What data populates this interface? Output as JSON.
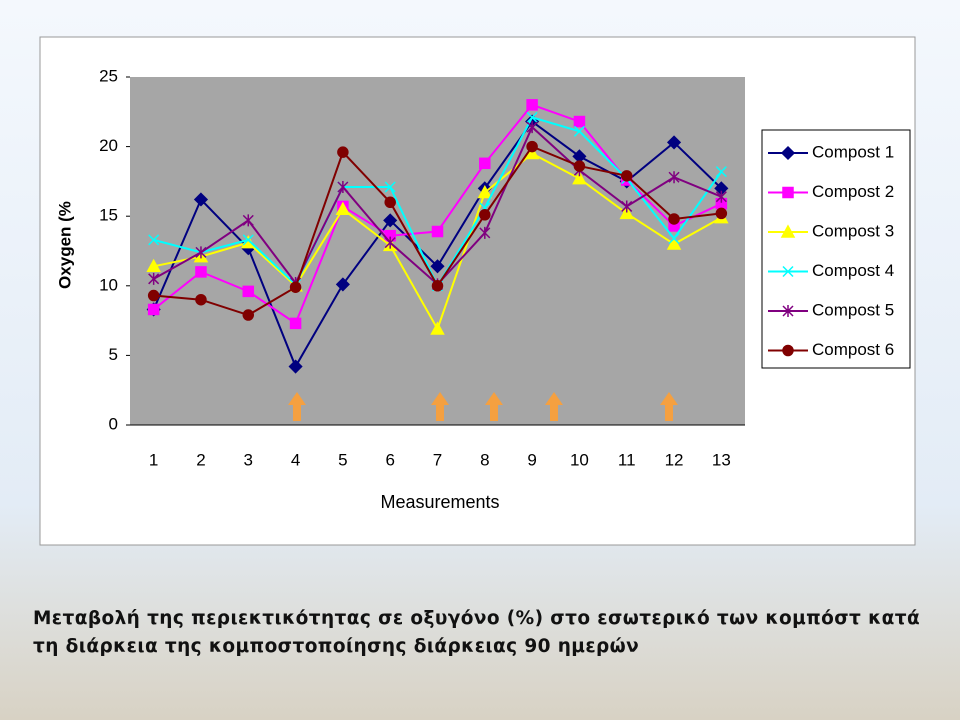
{
  "chart_data": {
    "type": "line",
    "y_label": "Oxygen (%",
    "x_label": "Measurements",
    "categories": [
      1,
      2,
      3,
      4,
      5,
      6,
      7,
      8,
      9,
      10,
      11,
      12,
      13
    ],
    "ylim": [
      0,
      25
    ],
    "yticks": [
      0,
      5,
      10,
      15,
      20,
      25
    ],
    "grid": false,
    "legend": "right",
    "series": [
      {
        "name": "Compost 1",
        "color": "#000080",
        "values": [
          8.3,
          16.2,
          12.7,
          4.2,
          10.1,
          14.7,
          11.4,
          17.0,
          21.8,
          19.3,
          17.5,
          20.3,
          17.0
        ]
      },
      {
        "name": "Compost 2",
        "color": "#ff00ff",
        "values": [
          8.3,
          11.0,
          9.6,
          7.3,
          15.7,
          13.6,
          13.9,
          18.8,
          23.0,
          21.8,
          17.6,
          14.3,
          15.9
        ]
      },
      {
        "name": "Compost 3",
        "color": "#ffff00",
        "values": [
          11.4,
          12.1,
          13.1,
          10.0,
          15.5,
          12.9,
          6.9,
          16.7,
          19.5,
          17.7,
          15.2,
          13.0,
          14.9
        ]
      },
      {
        "name": "Compost 4",
        "color": "#00ffff",
        "values": [
          13.3,
          12.4,
          13.3,
          10.1,
          17.1,
          17.1,
          10.0,
          15.6,
          22.1,
          21.1,
          17.7,
          13.4,
          18.2
        ]
      },
      {
        "name": "Compost 5",
        "color": "#800080",
        "values": [
          10.5,
          12.4,
          14.7,
          10.2,
          17.1,
          13.1,
          10.1,
          13.8,
          21.4,
          18.3,
          15.7,
          17.8,
          16.4
        ]
      },
      {
        "name": "Compost 6",
        "color": "#800000",
        "values": [
          9.3,
          9.0,
          7.9,
          9.9,
          19.6,
          16.0,
          10.0,
          15.1,
          20.0,
          18.6,
          17.9,
          14.8,
          15.2
        ]
      }
    ]
  },
  "caption": [
    "Μεταβολή της περιεκτικότητας σε οξυγόνο (%) στο εσωτερικό των κομπόστ κατά",
    "τη διάρκεια της κομποστοποίησης διάρκειας 90 ημερών"
  ]
}
